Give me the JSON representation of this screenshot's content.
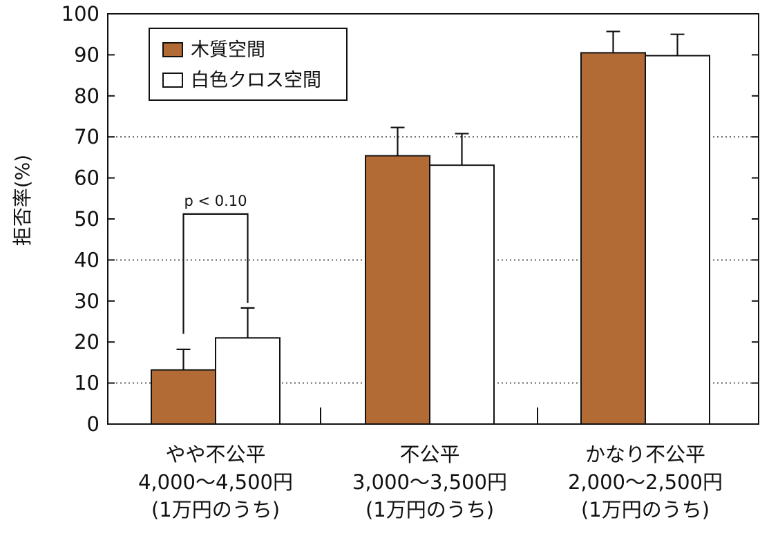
{
  "chart_data": {
    "type": "bar",
    "title": "",
    "ylabel": "拒否率(%)",
    "xlabel": "",
    "ylim": [
      0,
      100
    ],
    "yticks": [
      0,
      10,
      20,
      30,
      40,
      50,
      60,
      70,
      80,
      90,
      100
    ],
    "grid_dotted_at": [
      10,
      40,
      70
    ],
    "legend_position": "top-left",
    "categories": [
      {
        "lines": [
          "やや不公平",
          "4,000〜4,500円",
          "(1万円のうち)"
        ]
      },
      {
        "lines": [
          "不公平",
          "3,000〜3,500円",
          "(1万円のうち)"
        ]
      },
      {
        "lines": [
          "かなり不公平",
          "2,000〜2,500円",
          "(1万円のうち)"
        ]
      }
    ],
    "series": [
      {
        "name": "木質空間",
        "color": "#b36b36",
        "values": [
          13.2,
          65.4,
          90.5
        ],
        "error": [
          5.0,
          6.9,
          5.2
        ]
      },
      {
        "name": "白色クロス空間",
        "color": "#ffffff",
        "values": [
          21.0,
          63.1,
          89.8
        ],
        "error": [
          7.3,
          7.7,
          5.2
        ]
      }
    ],
    "annotations": [
      {
        "text": "p < 0.10",
        "category_index": 0,
        "y_bracket": 51.2,
        "y_left_end": 22.0,
        "y_right_end": 29.5
      }
    ]
  }
}
